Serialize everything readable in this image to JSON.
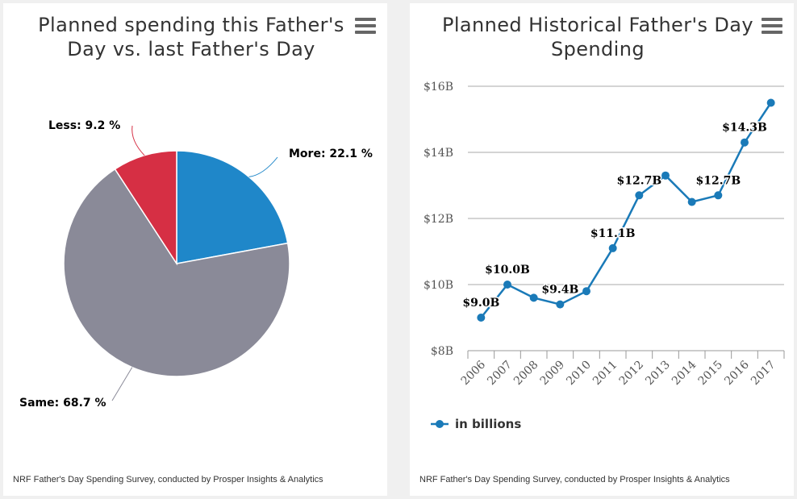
{
  "credit": "NRF Father's Day Spending Survey, conducted by Prosper Insights & Analytics",
  "chart_data": [
    {
      "type": "pie",
      "title": "Planned spending this Father's Day vs. last Father's Day",
      "title_lines": [
        "Planned spending this Father's",
        "Day vs. last Father's Day"
      ],
      "slices": [
        {
          "label": "More",
          "value": 22.1,
          "display": "More: 22.1 %",
          "color": "#1f87c9"
        },
        {
          "label": "Same",
          "value": 68.7,
          "display": "Same: 68.7 %",
          "color": "#8a8a98"
        },
        {
          "label": "Less",
          "value": 9.2,
          "display": "Less: 9.2 %",
          "color": "#d62f44"
        }
      ]
    },
    {
      "type": "line",
      "title": "Planned Historical Father's Day Spending",
      "title_lines": [
        "Planned Historical Father's Day",
        "Spending"
      ],
      "categories": [
        "2006",
        "2007",
        "2008",
        "2009",
        "2010",
        "2011",
        "2012",
        "2013",
        "2014",
        "2015",
        "2016",
        "2017"
      ],
      "ylim": [
        8,
        16
      ],
      "yticks": [
        8,
        10,
        12,
        14,
        16
      ],
      "ytick_labels": [
        "$8B",
        "$10B",
        "$12B",
        "$14B",
        "$16B"
      ],
      "grid": true,
      "legend_position": "bottom-left",
      "series": [
        {
          "name": "in billions",
          "color": "#1a7ab8",
          "values": [
            9.0,
            10.0,
            9.6,
            9.4,
            9.8,
            11.1,
            12.7,
            13.3,
            12.5,
            12.7,
            14.3,
            15.5
          ],
          "data_labels": [
            "$9.0B",
            "$10.0B",
            "",
            "$9.4B",
            "",
            "$11.1B",
            "$12.7B",
            "",
            "",
            "$12.7B",
            "$14.3B",
            ""
          ]
        }
      ]
    }
  ]
}
